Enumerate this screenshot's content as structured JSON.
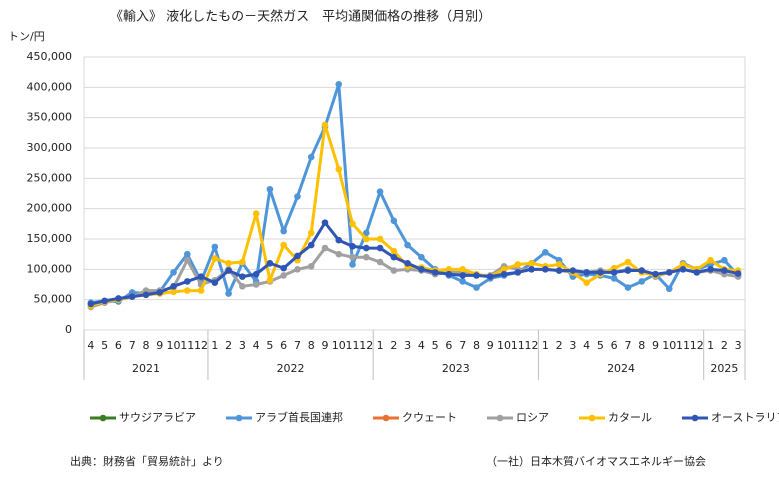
{
  "chart_data": {
    "type": "line",
    "title": "《輸入》 液化したもの－天然ガス　平均通関価格の推移（月別）",
    "y_label": "トン/円",
    "source": "出典：財務省「貿易統計」より",
    "credit": "（一社）日本木質バイオマスエネルギー協会",
    "categories": [
      "4",
      "5",
      "6",
      "7",
      "8",
      "9",
      "10",
      "11",
      "12",
      "1",
      "2",
      "3",
      "4",
      "5",
      "6",
      "7",
      "8",
      "9",
      "10",
      "11",
      "12",
      "1",
      "2",
      "3",
      "4",
      "5",
      "6",
      "7",
      "8",
      "9",
      "10",
      "11",
      "12",
      "1",
      "2",
      "3",
      "4",
      "5",
      "6",
      "7",
      "8",
      "9",
      "10",
      "11",
      "12",
      "1",
      "2",
      "3"
    ],
    "year_labels": [
      "2021",
      "2022",
      "2023",
      "2024",
      "2025"
    ],
    "ylim": [
      0,
      450000
    ],
    "yticks": [
      0,
      {
        "value": 50000,
        "label": "50,000"
      },
      {
        "value": 100000,
        "label": "100,000"
      },
      {
        "value": 150000,
        "label": "150,000"
      },
      {
        "value": 200000,
        "label": "200,000"
      },
      {
        "value": 250000,
        "label": "250,000"
      },
      {
        "value": 300000,
        "label": "300,000"
      },
      {
        "value": 350000,
        "label": "350,000"
      },
      {
        "value": 400000,
        "label": "400,000"
      },
      {
        "value": 450000,
        "label": "450,000"
      }
    ],
    "grid": true,
    "series": [
      {
        "name": "サウジアラビア",
        "color": "#3a7d22",
        "values": [
          null,
          null,
          null,
          null,
          null,
          null,
          null,
          null,
          null,
          null,
          null,
          null,
          null,
          null,
          null,
          null,
          null,
          null,
          null,
          null,
          null,
          null,
          null,
          null,
          null,
          null,
          null,
          null,
          null,
          null,
          null,
          null,
          null,
          null,
          null,
          null,
          null,
          null,
          null,
          null,
          null,
          null,
          null,
          null,
          null,
          null,
          null,
          null
        ]
      },
      {
        "name": "アラブ首長国連邦",
        "color": "#4e95d9",
        "values": [
          45000,
          48000,
          47000,
          62000,
          60000,
          63000,
          95000,
          125000,
          80000,
          137000,
          60000,
          110000,
          80000,
          232000,
          163000,
          220000,
          285000,
          335000,
          405000,
          108000,
          160000,
          228000,
          180000,
          140000,
          120000,
          100000,
          90000,
          80000,
          70000,
          85000,
          90000,
          95000,
          110000,
          128000,
          115000,
          88000,
          92000,
          90000,
          85000,
          70000,
          80000,
          92000,
          68000,
          110000,
          100000,
          108000,
          115000,
          90000
        ]
      },
      {
        "name": "クウェート",
        "color": "#e97132",
        "values": [
          null,
          null,
          null,
          null,
          null,
          null,
          null,
          null,
          null,
          null,
          null,
          null,
          null,
          null,
          null,
          null,
          null,
          null,
          null,
          null,
          null,
          null,
          null,
          null,
          null,
          null,
          null,
          null,
          null,
          null,
          null,
          null,
          null,
          null,
          null,
          null,
          null,
          null,
          null,
          null,
          null,
          null,
          null,
          null,
          null,
          null,
          null,
          null
        ]
      },
      {
        "name": "ロシア",
        "color": "#a0a0a0",
        "values": [
          38000,
          45000,
          50000,
          55000,
          65000,
          65000,
          70000,
          115000,
          75000,
          82000,
          100000,
          72000,
          75000,
          80000,
          90000,
          100000,
          105000,
          135000,
          125000,
          120000,
          120000,
          112000,
          98000,
          100000,
          98000,
          92000,
          95000,
          95000,
          90000,
          90000,
          105000,
          100000,
          100000,
          100000,
          98000,
          95000,
          95000,
          98000,
          95000,
          100000,
          98000,
          88000,
          95000,
          100000,
          95000,
          98000,
          92000,
          88000
        ]
      },
      {
        "name": "カタール",
        "color": "#ffc000",
        "values": [
          40000,
          47000,
          50000,
          55000,
          58000,
          60000,
          63000,
          65000,
          65000,
          118000,
          110000,
          112000,
          192000,
          82000,
          140000,
          115000,
          160000,
          338000,
          265000,
          175000,
          150000,
          150000,
          130000,
          105000,
          103000,
          98000,
          100000,
          100000,
          92000,
          88000,
          100000,
          108000,
          110000,
          105000,
          108000,
          95000,
          78000,
          92000,
          102000,
          112000,
          95000,
          90000,
          95000,
          108000,
          100000,
          115000,
          100000,
          98000
        ]
      },
      {
        "name": "オーストラリア",
        "color": "#2f55b5",
        "values": [
          43000,
          48000,
          52000,
          55000,
          58000,
          62000,
          72000,
          80000,
          88000,
          78000,
          98000,
          88000,
          92000,
          110000,
          102000,
          122000,
          140000,
          177000,
          148000,
          138000,
          135000,
          135000,
          120000,
          110000,
          100000,
          95000,
          92000,
          90000,
          90000,
          88000,
          92000,
          95000,
          100000,
          100000,
          98000,
          98000,
          95000,
          95000,
          95000,
          98000,
          98000,
          92000,
          95000,
          100000,
          95000,
          100000,
          98000,
          93000
        ]
      }
    ]
  }
}
